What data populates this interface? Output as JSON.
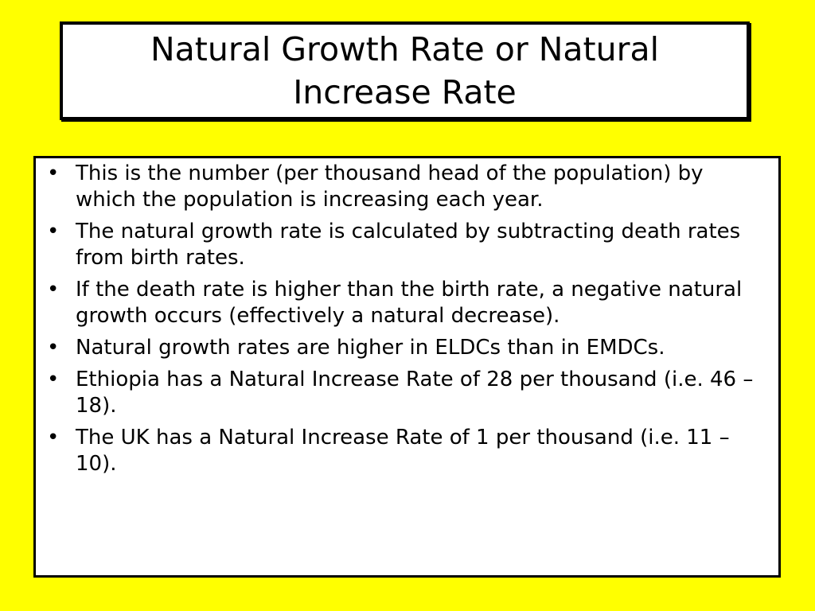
{
  "title": "Natural Growth Rate or Natural Increase Rate",
  "bullet_symbol": "•",
  "bullets": [
    "This is the number (per thousand head of the population) by which the population is increasing each year.",
    "The natural growth rate is calculated by subtracting death rates from birth rates.",
    "If the death rate is higher than the birth rate, a negative natural growth occurs (effectively a natural decrease).",
    "Natural growth rates are higher in ELDCs than in EMDCs.",
    "Ethiopia has a Natural Increase Rate of 28 per thousand (i.e. 46 – 18).",
    "The UK has a Natural Increase Rate of 1 per thousand (i.e. 11 – 10)."
  ],
  "colors": {
    "background": "#ffff00",
    "box_fill": "#ffffff",
    "border": "#000000"
  }
}
